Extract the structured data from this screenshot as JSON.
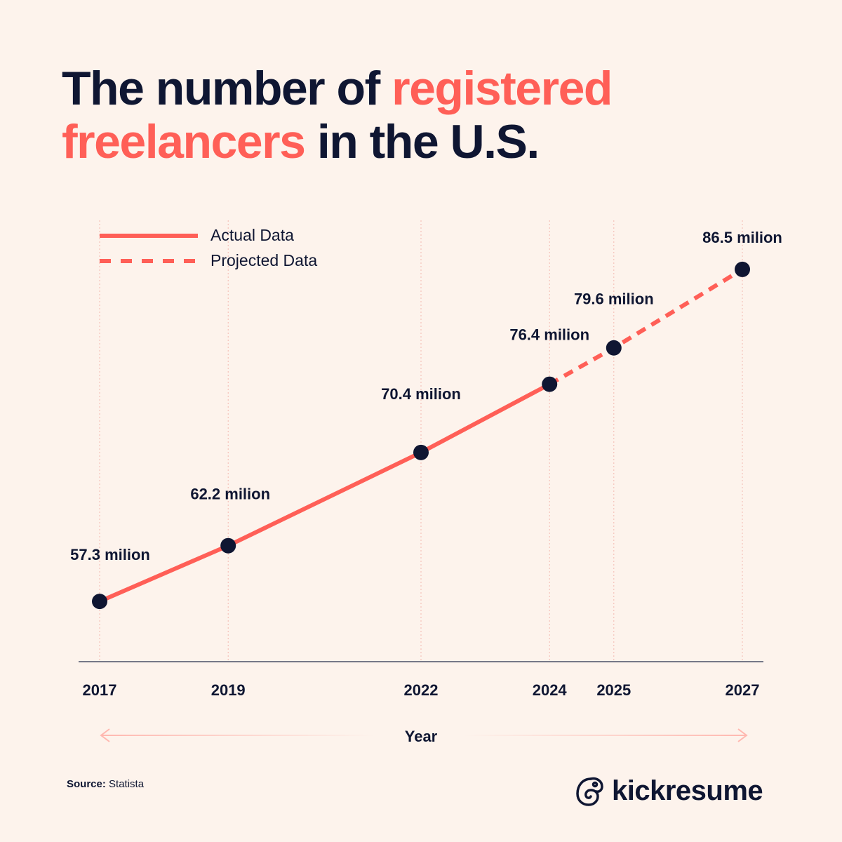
{
  "title": {
    "part1": "The number of ",
    "highlight": "registered freelancers",
    "part2": " in the U.S."
  },
  "legend": {
    "actual": "Actual Data",
    "projected": "Projected Data"
  },
  "source": {
    "label": "Source:",
    "value": "Statista"
  },
  "brand": {
    "name": "kickresume",
    "icon": "chameleon-logo-icon"
  },
  "colors": {
    "background": "#fdf3ec",
    "text": "#0f1632",
    "accent": "#ff5f57",
    "axis_arrow": "#ffb8b0"
  },
  "chart_data": {
    "type": "line",
    "xlabel": "Year",
    "ylabel": "",
    "x": [
      2017,
      2019,
      2022,
      2024,
      2025,
      2027
    ],
    "tick_labels": [
      "2017",
      "2019",
      "2022",
      "2024",
      "2025",
      "2027"
    ],
    "series": [
      {
        "name": "Actual Data",
        "style": "solid",
        "x": [
          2017,
          2019,
          2022,
          2024
        ],
        "values": [
          57.3,
          62.2,
          70.4,
          76.4
        ]
      },
      {
        "name": "Projected Data",
        "style": "dashed",
        "x": [
          2024,
          2025,
          2027
        ],
        "values": [
          76.4,
          79.6,
          86.5
        ]
      }
    ],
    "data_labels": [
      "57.3 milion",
      "62.2 milion",
      "70.4 milion",
      "76.4 milion",
      "79.6 milion",
      "86.5 milion"
    ],
    "values": [
      57.3,
      62.2,
      70.4,
      76.4,
      79.6,
      86.5
    ],
    "ylim": [
      52,
      91
    ],
    "grid": "vertical dotted lines at each year",
    "legend_position": "top-left"
  }
}
